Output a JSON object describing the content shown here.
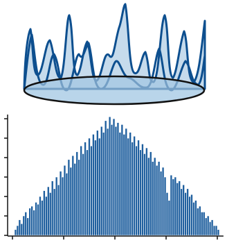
{
  "chart_data": {
    "type": "histogram",
    "bins": [
      1,
      2,
      3,
      4,
      5,
      6,
      7,
      8,
      9,
      10,
      11,
      12,
      13,
      14,
      15,
      16,
      17,
      18,
      19,
      20,
      21,
      22,
      23,
      24,
      25,
      26,
      27,
      28,
      29,
      30,
      31,
      32,
      33,
      34,
      35,
      36,
      37,
      38,
      39,
      40,
      41,
      42,
      43,
      44,
      45,
      46,
      47,
      48,
      49,
      50,
      51,
      52,
      53,
      54,
      55,
      56,
      57,
      58,
      59,
      60,
      61,
      62,
      63,
      64,
      65,
      66,
      67,
      68,
      69,
      70,
      71,
      72,
      73,
      74,
      75,
      76,
      77,
      78,
      79,
      80,
      81,
      82,
      83,
      84,
      85,
      86,
      87,
      88,
      89,
      90,
      91,
      92,
      93,
      94,
      95,
      96,
      97,
      98,
      99,
      100,
      101
    ],
    "values": [
      0.3,
      0.5,
      0.8,
      0.6,
      1.0,
      1.2,
      0.9,
      1.4,
      1.5,
      1.3,
      1.7,
      1.6,
      2.0,
      1.8,
      2.3,
      2.0,
      2.5,
      2.2,
      2.8,
      2.4,
      3.0,
      2.6,
      3.3,
      3.0,
      3.6,
      3.2,
      3.9,
      3.5,
      4.1,
      3.7,
      4.3,
      3.9,
      4.6,
      4.2,
      4.8,
      4.4,
      5.0,
      4.6,
      5.2,
      4.9,
      5.4,
      5.0,
      5.6,
      5.3,
      5.9,
      5.5,
      6.1,
      5.7,
      6.0,
      5.6,
      5.8,
      5.3,
      5.7,
      5.2,
      5.5,
      5.0,
      5.3,
      4.8,
      5.1,
      4.6,
      4.9,
      4.4,
      4.7,
      4.2,
      4.5,
      4.0,
      4.3,
      3.8,
      4.0,
      3.6,
      3.8,
      3.3,
      3.5,
      3.0,
      2.2,
      1.8,
      3.1,
      2.9,
      3.0,
      2.7,
      2.8,
      2.4,
      2.6,
      2.2,
      2.4,
      2.0,
      2.1,
      1.7,
      1.8,
      1.4,
      1.5,
      1.2,
      1.2,
      0.9,
      1.0,
      0.7,
      0.8,
      0.5,
      0.5,
      0.3
    ],
    "color": "#1f5f9e",
    "xlim": [
      0,
      103
    ],
    "xticks": [
      0,
      25,
      50,
      75,
      100
    ],
    "ylim": [
      0,
      6.5
    ],
    "yticks": [
      0,
      1,
      2,
      3,
      4,
      5,
      6
    ]
  }
}
